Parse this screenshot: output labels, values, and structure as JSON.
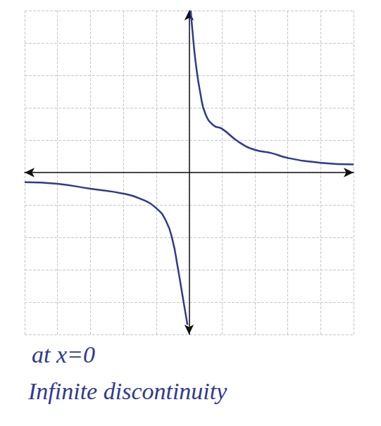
{
  "chart_data": {
    "type": "line",
    "xlim": [
      -5,
      5
    ],
    "ylim": [
      -5,
      5
    ],
    "xticks": [
      -5,
      -4,
      -3,
      -2,
      -1,
      0,
      1,
      2,
      3,
      4,
      5
    ],
    "yticks": [
      -5,
      -4,
      -3,
      -2,
      -1,
      0,
      1,
      2,
      3,
      4,
      5
    ],
    "grid": true,
    "tick_labels": false,
    "marker": "none",
    "line_style": "solid",
    "series": [
      {
        "color": "#2f3a8f",
        "x": [
          0.05,
          0.1,
          0.2,
          0.35,
          0.5,
          0.75,
          1,
          1.5,
          2,
          2.5,
          3,
          4,
          5
        ],
        "values": [
          5,
          4.4,
          3.4,
          2.4,
          1.8,
          1.45,
          1.35,
          0.95,
          0.7,
          0.6,
          0.45,
          0.3,
          0.25
        ]
      },
      {
        "color": "#2f3a8f",
        "x": [
          -5,
          -4,
          -3,
          -2,
          -1.5,
          -1,
          -0.7,
          -0.5,
          -0.35,
          -0.2,
          -0.1,
          -0.05
        ],
        "values": [
          -0.3,
          -0.35,
          -0.5,
          -0.65,
          -0.8,
          -1.1,
          -1.5,
          -2.1,
          -2.9,
          -3.8,
          -4.4,
          -4.7
        ]
      }
    ],
    "annotations": [
      "at x=0",
      "Infinite discontinuity"
    ]
  }
}
